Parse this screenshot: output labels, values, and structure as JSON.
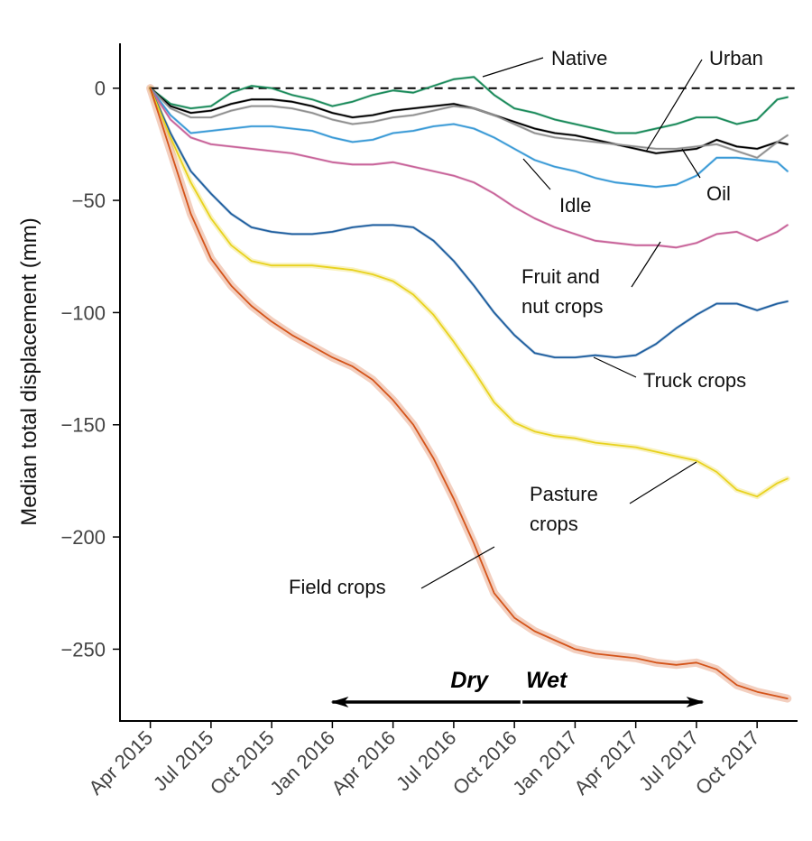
{
  "chart_data": {
    "type": "line",
    "ylabel": "Median total displacement (mm)",
    "xlabel": "",
    "ylim": [
      -282,
      20
    ],
    "y_ticks": [
      0,
      -50,
      -100,
      -150,
      -200,
      -250
    ],
    "y_tick_labels": [
      "0",
      "−50",
      "−100",
      "−150",
      "−200",
      "−250"
    ],
    "x_ticks": [
      "Apr 2015",
      "Jul 2015",
      "Oct 2015",
      "Jan 2016",
      "Apr 2016",
      "Jul 2016",
      "Oct 2016",
      "Jan 2017",
      "Apr 2017",
      "Jul 2017",
      "Oct 2017"
    ],
    "x_tick_months": [
      0,
      3,
      6,
      9,
      12,
      15,
      18,
      21,
      24,
      27,
      30
    ],
    "x_range_months": [
      -1.5,
      32
    ],
    "zero_line": true,
    "grid": false,
    "series": [
      {
        "name": "Native",
        "color": "#1a8a5a",
        "x": [
          0,
          1,
          2,
          3,
          4,
          5,
          6,
          7,
          8,
          9,
          10,
          11,
          12,
          13,
          14,
          15,
          16,
          17,
          18,
          19,
          20,
          21,
          22,
          23,
          24,
          25,
          26,
          27,
          28,
          29,
          30,
          31,
          31.5
        ],
        "y": [
          0,
          -7,
          -9,
          -8,
          -2,
          1,
          0,
          -3,
          -5,
          -8,
          -6,
          -3,
          -1,
          -2,
          1,
          4,
          5,
          -3,
          -9,
          -11,
          -14,
          -16,
          -18,
          -20,
          -20,
          -18,
          -16,
          -13,
          -13,
          -16,
          -14,
          -5,
          -4
        ]
      },
      {
        "name": "Urban",
        "color": "#000000",
        "x": [
          0,
          1,
          2,
          3,
          4,
          5,
          6,
          7,
          8,
          9,
          10,
          11,
          12,
          13,
          14,
          15,
          16,
          17,
          18,
          19,
          20,
          21,
          22,
          23,
          24,
          25,
          26,
          27,
          28,
          29,
          30,
          31,
          31.5
        ],
        "y": [
          0,
          -8,
          -11,
          -10,
          -7,
          -5,
          -5,
          -6,
          -8,
          -11,
          -13,
          -12,
          -10,
          -9,
          -8,
          -7,
          -9,
          -12,
          -15,
          -18,
          -20,
          -21,
          -23,
          -25,
          -27,
          -29,
          -28,
          -27,
          -23,
          -26,
          -27,
          -24,
          -25
        ]
      },
      {
        "name": "Oil",
        "color": "#909090",
        "x": [
          0,
          1,
          2,
          3,
          4,
          5,
          6,
          7,
          8,
          9,
          10,
          11,
          12,
          13,
          14,
          15,
          16,
          17,
          18,
          19,
          20,
          21,
          22,
          23,
          24,
          25,
          26,
          27,
          28,
          29,
          30,
          31,
          31.5
        ],
        "y": [
          0,
          -9,
          -13,
          -13,
          -10,
          -8,
          -8,
          -9,
          -11,
          -14,
          -16,
          -15,
          -13,
          -12,
          -10,
          -8,
          -9,
          -12,
          -16,
          -20,
          -22,
          -23,
          -24,
          -25,
          -26,
          -27,
          -27,
          -26,
          -25,
          -28,
          -31,
          -24,
          -21
        ]
      },
      {
        "name": "Idle",
        "color": "#3a9ad6",
        "x": [
          0,
          1,
          2,
          3,
          4,
          5,
          6,
          7,
          8,
          9,
          10,
          11,
          12,
          13,
          14,
          15,
          16,
          17,
          18,
          19,
          20,
          21,
          22,
          23,
          24,
          25,
          26,
          27,
          28,
          29,
          30,
          31,
          31.5
        ],
        "y": [
          0,
          -12,
          -20,
          -19,
          -18,
          -17,
          -17,
          -18,
          -19,
          -22,
          -24,
          -23,
          -20,
          -19,
          -17,
          -16,
          -18,
          -22,
          -27,
          -32,
          -35,
          -37,
          -40,
          -42,
          -43,
          -44,
          -43,
          -39,
          -31,
          -31,
          -32,
          -33,
          -37
        ]
      },
      {
        "name": "Fruit and nut crops",
        "color": "#c8649a",
        "x": [
          0,
          1,
          2,
          3,
          4,
          5,
          6,
          7,
          8,
          9,
          10,
          11,
          12,
          13,
          14,
          15,
          16,
          17,
          18,
          19,
          20,
          21,
          22,
          23,
          24,
          25,
          26,
          27,
          28,
          29,
          30,
          31,
          31.5
        ],
        "y": [
          0,
          -14,
          -22,
          -25,
          -26,
          -27,
          -28,
          -29,
          -31,
          -33,
          -34,
          -34,
          -33,
          -35,
          -37,
          -39,
          -42,
          -47,
          -53,
          -58,
          -62,
          -65,
          -68,
          -69,
          -70,
          -70,
          -71,
          -69,
          -65,
          -64,
          -68,
          -64,
          -61
        ]
      },
      {
        "name": "Truck crops",
        "color": "#1f5f9f",
        "x": [
          0,
          1,
          2,
          3,
          4,
          5,
          6,
          7,
          8,
          9,
          10,
          11,
          12,
          13,
          14,
          15,
          16,
          17,
          18,
          19,
          20,
          21,
          22,
          23,
          24,
          25,
          26,
          27,
          28,
          29,
          30,
          31,
          31.5
        ],
        "y": [
          0,
          -20,
          -37,
          -47,
          -56,
          -62,
          -64,
          -65,
          -65,
          -64,
          -62,
          -61,
          -61,
          -62,
          -68,
          -77,
          -88,
          -100,
          -110,
          -118,
          -120,
          -120,
          -119,
          -120,
          -119,
          -114,
          -107,
          -101,
          -96,
          -96,
          -99,
          -96,
          -95
        ]
      },
      {
        "name": "Pasture crops",
        "color": "#e8d21e",
        "x": [
          0,
          1,
          2,
          3,
          4,
          5,
          6,
          7,
          8,
          9,
          10,
          11,
          12,
          13,
          14,
          15,
          16,
          17,
          18,
          19,
          20,
          21,
          22,
          23,
          24,
          25,
          26,
          27,
          28,
          29,
          30,
          31,
          31.5
        ],
        "y": [
          0,
          -22,
          -42,
          -58,
          -70,
          -77,
          -79,
          -79,
          -79,
          -80,
          -81,
          -83,
          -86,
          -92,
          -101,
          -113,
          -126,
          -140,
          -149,
          -153,
          -155,
          -156,
          -158,
          -159,
          -160,
          -162,
          -164,
          -166,
          -171,
          -179,
          -182,
          -176,
          -174
        ]
      },
      {
        "name": "Field crops",
        "color": "#d4541a",
        "x": [
          0,
          1,
          2,
          3,
          4,
          5,
          6,
          7,
          8,
          9,
          10,
          11,
          12,
          13,
          14,
          15,
          16,
          17,
          18,
          19,
          20,
          21,
          22,
          23,
          24,
          25,
          26,
          27,
          28,
          29,
          30,
          31,
          31.5
        ],
        "y": [
          0,
          -28,
          -56,
          -76,
          -88,
          -97,
          -104,
          -110,
          -115,
          -120,
          -124,
          -130,
          -139,
          -150,
          -165,
          -183,
          -203,
          -225,
          -236,
          -242,
          -246,
          -250,
          -252,
          -253,
          -254,
          -256,
          -257,
          -256,
          -259,
          -266,
          -269,
          -271,
          -272
        ]
      }
    ],
    "annotations": [
      {
        "text": "Native"
      },
      {
        "text": "Urban"
      },
      {
        "text": "Oil"
      },
      {
        "text": "Idle"
      },
      {
        "text": "Fruit and"
      },
      {
        "text": "nut crops"
      },
      {
        "text": "Truck crops"
      },
      {
        "text": "Pasture"
      },
      {
        "text": "crops"
      },
      {
        "text": "Field crops"
      }
    ],
    "seasons": [
      {
        "label": "Dry",
        "arrow_from": 18.3,
        "arrow_to": 9
      },
      {
        "label": "Wet",
        "arrow_from": 18.4,
        "arrow_to": 27.3
      }
    ]
  }
}
